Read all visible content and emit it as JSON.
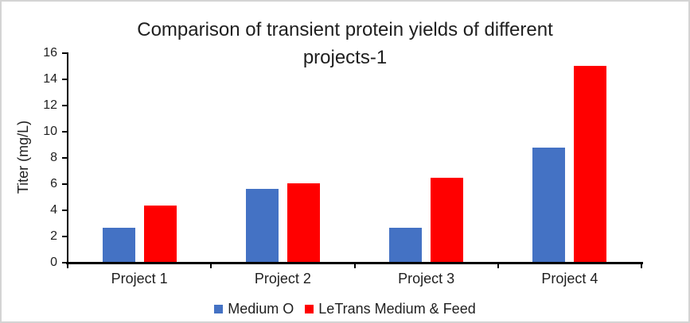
{
  "chart_data": {
    "type": "bar",
    "title": "Comparison of transient protein yields of different projects-1",
    "categories": [
      "Project 1",
      "Project 2",
      "Project 3",
      "Project 4"
    ],
    "series": [
      {
        "name": "Medium O",
        "color": "#4472C4",
        "values": [
          2.6,
          5.6,
          2.6,
          8.7
        ]
      },
      {
        "name": "LeTrans Medium & Feed",
        "color": "#FF0000",
        "values": [
          4.3,
          6.0,
          6.4,
          15.0
        ]
      }
    ],
    "xlabel": "",
    "ylabel": "Titer (mg/L)",
    "ylim": [
      0,
      16
    ],
    "yticks": [
      0,
      2,
      4,
      6,
      8,
      10,
      12,
      14,
      16
    ],
    "grid": false,
    "legend_position": "bottom"
  },
  "display": {
    "title_line1": "Comparison of transient protein yields of different",
    "title_line2": "projects-1"
  },
  "colors": {
    "axis": "#000000",
    "text": "#1f1f1f",
    "frame_border": "#d4d4d4",
    "background": "#ffffff",
    "series_blue": "#4472C4",
    "series_red": "#FF0000"
  }
}
